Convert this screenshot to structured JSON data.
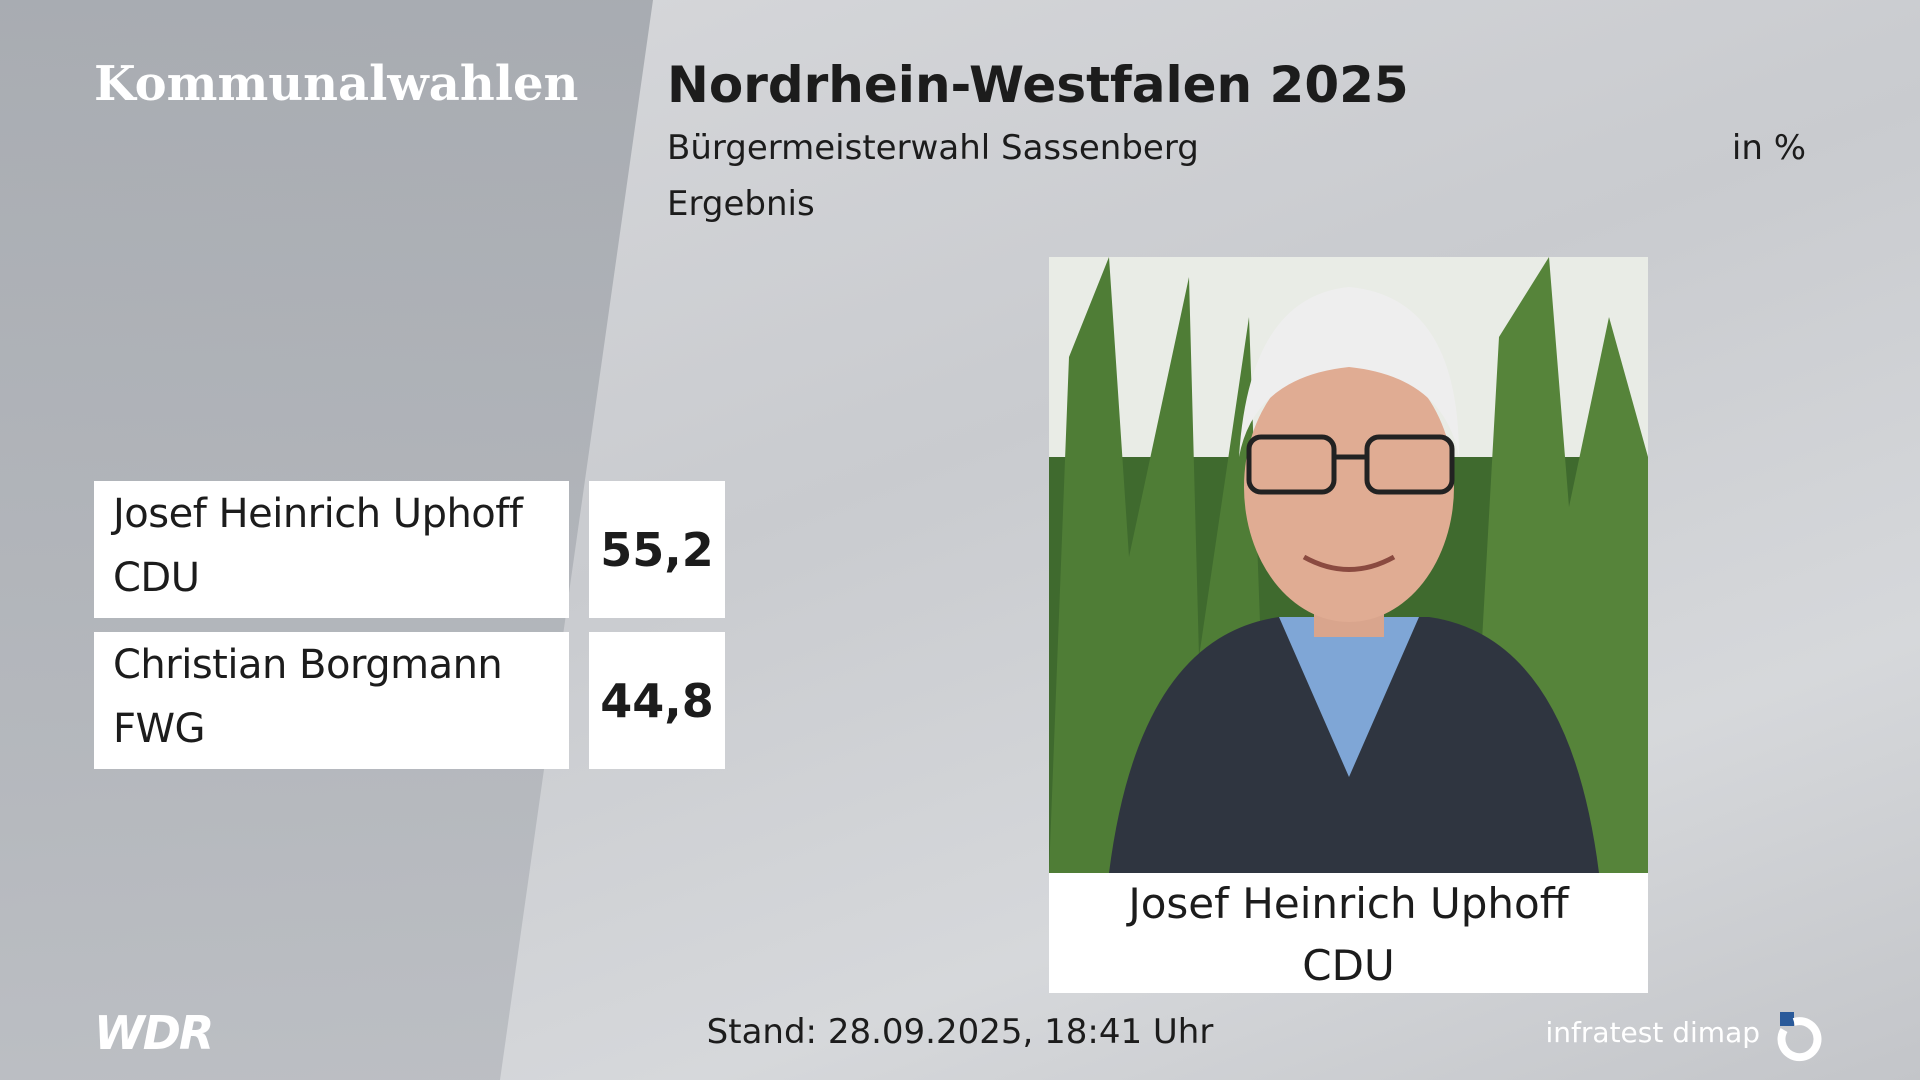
{
  "header": {
    "section": "Kommunalwahlen",
    "title": "Nordrhein-Westfalen 2025",
    "subtitle": "Bürgermeisterwahl Sassenberg",
    "unit": "in %",
    "status": "Ergebnis"
  },
  "results": [
    {
      "name": "Josef Heinrich Uphoff",
      "party": "CDU",
      "value": "55,2"
    },
    {
      "name": "Christian Borgmann",
      "party": "FWG",
      "value": "44,8"
    }
  ],
  "highlight": {
    "name": "Josef Heinrich Uphoff",
    "party": "CDU"
  },
  "footer": {
    "broadcaster": "WDR",
    "timestamp": "Stand: 28.09.2025, 18:41 Uhr",
    "source": "infratest dimap"
  }
}
